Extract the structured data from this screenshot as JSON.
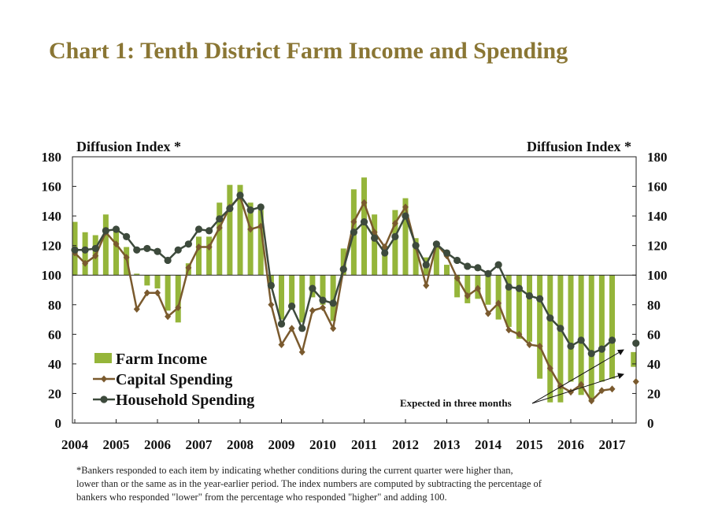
{
  "title": "Chart 1: Tenth District Farm Income and Spending",
  "footnote": [
    "*Bankers responded to each item by indicating whether conditions during the current quarter were higher than,",
    "lower than or the same as in the year-earlier period.  The index numbers are computed by subtracting the percentage of",
    "bankers who responded \"lower\" from the percentage who responded \"higher\" and adding 100."
  ],
  "colors": {
    "farm_income": "#95b53a",
    "capital_spending": "#7a5a2e",
    "household_spending": "#3d4a3c"
  },
  "chart_data": {
    "type": "bar+line",
    "ylabel_left": "Diffusion Index *",
    "ylabel_right": "Diffusion Index *",
    "ylim": [
      0,
      180
    ],
    "yticks": [
      0,
      20,
      40,
      60,
      80,
      100,
      120,
      140,
      160,
      180
    ],
    "baseline": 100,
    "xlim": [
      2004,
      2017.5
    ],
    "year_labels": [
      "2004",
      "2005",
      "2006",
      "2007",
      "2008",
      "2009",
      "2010",
      "2011",
      "2012",
      "2013",
      "2014",
      "2015",
      "2016",
      "2017"
    ],
    "quarter_x": [
      2004,
      2004.25,
      2004.5,
      2004.75,
      2005,
      2005.25,
      2005.5,
      2005.75,
      2006,
      2006.25,
      2006.5,
      2006.75,
      2007,
      2007.25,
      2007.5,
      2007.75,
      2008,
      2008.25,
      2008.5,
      2008.75,
      2009,
      2009.25,
      2009.5,
      2009.75,
      2010,
      2010.25,
      2010.5,
      2010.75,
      2011,
      2011.25,
      2011.5,
      2011.75,
      2012,
      2012.25,
      2012.5,
      2012.75,
      2013,
      2013.25,
      2013.5,
      2013.75,
      2014,
      2014.25,
      2014.5,
      2014.75,
      2015,
      2015.25,
      2015.5,
      2015.75,
      2016,
      2016.25,
      2016.5,
      2016.75,
      2017
    ],
    "series": [
      {
        "name": "Farm Income",
        "type": "bar",
        "values": [
          136,
          129,
          127,
          141,
          131,
          119,
          101,
          93,
          91,
          76,
          68,
          108,
          126,
          126,
          149,
          161,
          161,
          149,
          144,
          91,
          70,
          78,
          68,
          85,
          80,
          69,
          118,
          158,
          166,
          141,
          120,
          144,
          152,
          125,
          112,
          121,
          107,
          85,
          81,
          84,
          80,
          70,
          65,
          57,
          55,
          30,
          14,
          14,
          28,
          19,
          15,
          28,
          30
        ]
      },
      {
        "name": "Capital Spending",
        "type": "line",
        "marker": "diamond",
        "values": [
          115,
          108,
          113,
          129,
          121,
          112,
          77,
          88,
          88,
          72,
          78,
          105,
          119,
          119,
          132,
          146,
          153,
          131,
          133,
          80,
          53,
          64,
          48,
          76,
          78,
          64,
          104,
          136,
          149,
          129,
          119,
          135,
          146,
          119,
          93,
          121,
          113,
          98,
          86,
          91,
          74,
          81,
          63,
          60,
          53,
          52,
          37,
          25,
          21,
          26,
          15,
          22,
          23
        ]
      },
      {
        "name": "Household Spending",
        "type": "line",
        "marker": "circle",
        "values": [
          117,
          117,
          118,
          130,
          131,
          126,
          117,
          118,
          116,
          110,
          117,
          121,
          131,
          130,
          138,
          145,
          154,
          144,
          146,
          93,
          67,
          79,
          64,
          91,
          83,
          81,
          104,
          129,
          136,
          125,
          115,
          126,
          140,
          120,
          107,
          121,
          115,
          110,
          106,
          105,
          101,
          107,
          92,
          91,
          86,
          84,
          71,
          64,
          52,
          56,
          47,
          50,
          56
        ]
      }
    ],
    "expected": {
      "farm_income": 43,
      "capital_spending": 28,
      "household_spending": 54
    },
    "annotation": "Expected in three months",
    "legend": [
      "Farm Income",
      "Capital Spending",
      "Household Spending"
    ]
  }
}
